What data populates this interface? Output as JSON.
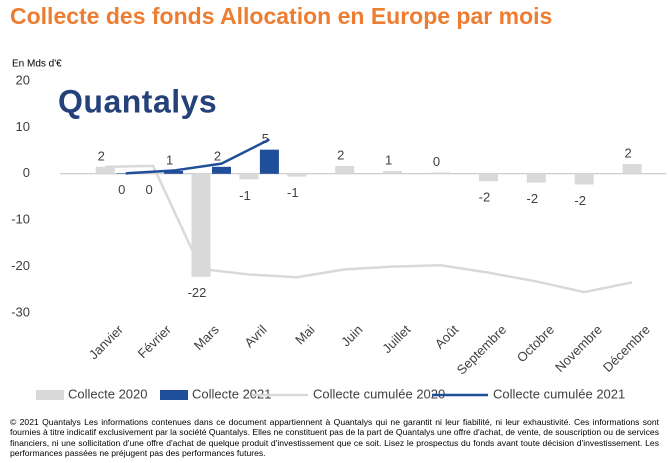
{
  "chart_data": {
    "type": "bar",
    "title": "Collecte des fonds Allocation en Europe par mois",
    "logo": "Quantalys",
    "y_axis_label": "En Mds d'€",
    "categories": [
      "Janvier",
      "Février",
      "Mars",
      "Avril",
      "Mai",
      "Juin",
      "Juillet",
      "Août",
      "Septembre",
      "Octobre",
      "Novembre",
      "Décembre"
    ],
    "ylim": [
      -30,
      20
    ],
    "yticks": [
      -30,
      -20,
      -10,
      0,
      10,
      20
    ],
    "grid": false,
    "series": [
      {
        "name": "Collecte 2020",
        "type": "bar",
        "color": "#d9d9d9",
        "values": [
          1.5,
          0.2,
          -22.2,
          -1.2,
          -0.6,
          1.7,
          0.6,
          0.3,
          -1.6,
          -1.9,
          -2.3,
          2.1
        ],
        "value_labels": [
          "2",
          "0",
          "-22",
          "-1",
          "-1",
          "2",
          "1",
          "0",
          "-2",
          "-2",
          "-2",
          "2"
        ]
      },
      {
        "name": "Collecte 2021",
        "type": "bar",
        "color": "#1f4e9a",
        "values": [
          0.1,
          0.6,
          1.5,
          5.2,
          null,
          null,
          null,
          null,
          null,
          null,
          null,
          null
        ],
        "value_labels": [
          "0",
          "1",
          "2",
          "5",
          null,
          null,
          null,
          null,
          null,
          null,
          null,
          null
        ]
      },
      {
        "name": "Collecte cumulée 2020",
        "type": "line",
        "color": "#d9d9d9",
        "values": [
          1.5,
          1.7,
          -20.5,
          -21.7,
          -22.3,
          -20.6,
          -20.0,
          -19.7,
          -21.3,
          -23.2,
          -25.5,
          -23.4
        ]
      },
      {
        "name": "Collecte cumulée 2021",
        "type": "line",
        "color": "#1f4e9a",
        "values": [
          0.1,
          0.7,
          2.2,
          7.4,
          null,
          null,
          null,
          null,
          null,
          null,
          null,
          null
        ]
      }
    ],
    "footer": "© 2021 Quantalys Les informations contenues dans ce document appartiennent à Quantalys qui ne garantit ni leur fiabilité, ni leur exhaustivité. Ces informations sont fournies à titre indicatif exclusivement par la société Quantalys. Elles ne constituent pas de la part de Quantalys une offre d'achat, de vente, de souscription ou de services financiers, ni une sollicitation d'une offre d'achat de quelque produit d'investissement que ce soit. Lisez le prospectus du fonds avant toute décision d'investissement. Les performances passées ne préjugent pas des performances futures."
  }
}
